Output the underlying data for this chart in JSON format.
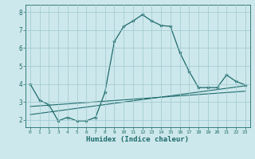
{
  "xlabel": "Humidex (Indice chaleur)",
  "bg_color": "#cde8ec",
  "grid_color": "#9dc8ce",
  "line_color": "#1e6b6b",
  "xlim": [
    -0.5,
    23.5
  ],
  "ylim": [
    1.6,
    8.4
  ],
  "yticks": [
    2,
    3,
    4,
    5,
    6,
    7,
    8
  ],
  "xticks": [
    0,
    1,
    2,
    3,
    4,
    5,
    6,
    7,
    8,
    9,
    10,
    11,
    12,
    13,
    14,
    15,
    16,
    17,
    18,
    19,
    20,
    21,
    22,
    23
  ],
  "curve1_x": [
    0,
    1,
    2,
    3,
    4,
    5,
    6,
    7,
    8,
    9,
    10,
    11,
    12,
    13,
    14,
    15,
    16,
    17,
    18,
    19,
    20,
    21,
    22,
    23
  ],
  "curve1_y": [
    4.0,
    3.1,
    2.85,
    1.95,
    2.15,
    1.95,
    1.95,
    2.15,
    3.55,
    6.35,
    7.2,
    7.5,
    7.85,
    7.5,
    7.25,
    7.2,
    5.75,
    4.7,
    3.8,
    3.8,
    3.8,
    4.5,
    4.15,
    3.95
  ],
  "line1_x": [
    0,
    23
  ],
  "line1_y": [
    2.75,
    3.6
  ],
  "line2_x": [
    0,
    23
  ],
  "line2_y": [
    2.3,
    3.9
  ]
}
